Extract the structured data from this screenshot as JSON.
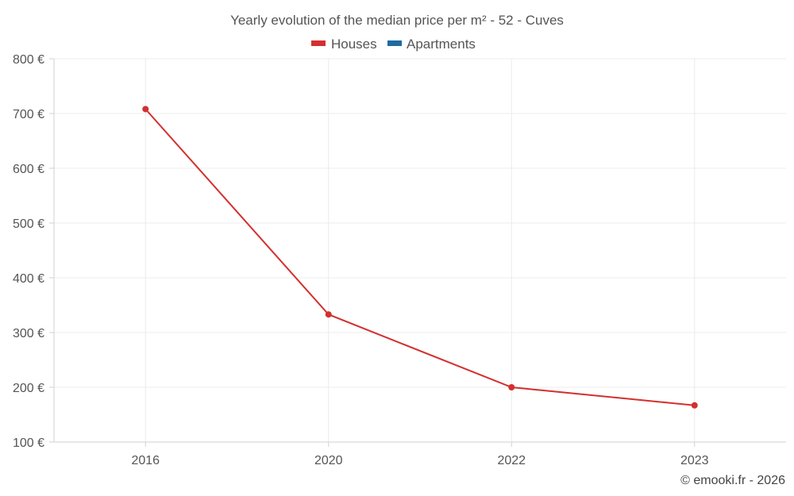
{
  "chart_data": {
    "type": "line",
    "title": "Yearly evolution of the median price per m² - 52 - Cuves",
    "xlabel": "",
    "ylabel": "",
    "categories": [
      "2016",
      "2020",
      "2022",
      "2023"
    ],
    "series": [
      {
        "name": "Houses",
        "color": "#d32f2f",
        "values": [
          708,
          333,
          200,
          167
        ]
      },
      {
        "name": "Apartments",
        "color": "#1f6aa0",
        "values": [
          null,
          null,
          null,
          null
        ]
      }
    ],
    "ylim": [
      100,
      800
    ],
    "yticks": [
      100,
      200,
      300,
      400,
      500,
      600,
      700,
      800
    ],
    "ytick_labels": [
      "100 €",
      "200 €",
      "300 €",
      "400 €",
      "500 €",
      "600 €",
      "700 €",
      "800 €"
    ],
    "legend_position": "top-center",
    "grid": true
  },
  "credit": "© emooki.fr - 2026"
}
